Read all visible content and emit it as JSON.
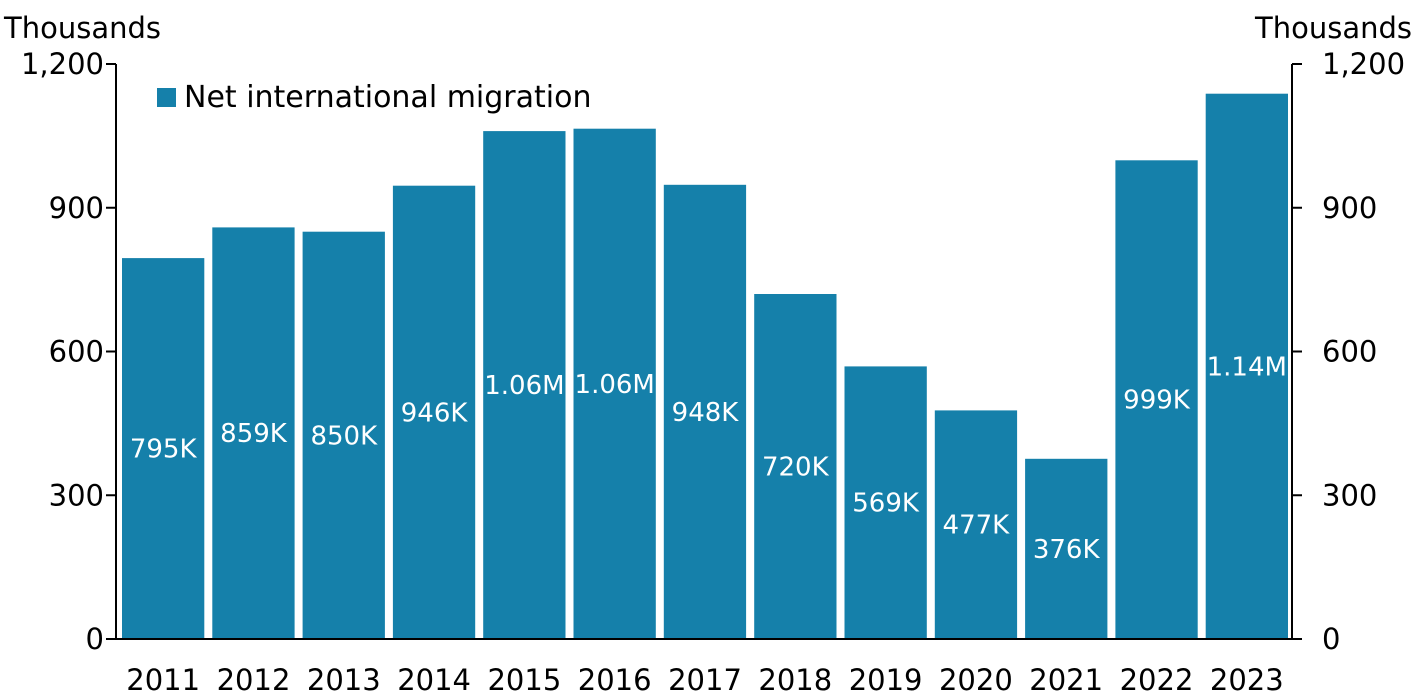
{
  "chart_data": {
    "type": "bar",
    "unit_left": "Thousands",
    "unit_right": "Thousands",
    "categories": [
      "2011",
      "2012",
      "2013",
      "2014",
      "2015",
      "2016",
      "2017",
      "2018",
      "2019",
      "2020",
      "2021",
      "2022",
      "2023"
    ],
    "series": [
      {
        "name": "Net international migration",
        "values": [
          795,
          859,
          850,
          946,
          1060,
          1065,
          948,
          720,
          569,
          477,
          376,
          999,
          1138
        ],
        "labels": [
          "795K",
          "859K",
          "850K",
          "946K",
          "1.06M",
          "1.06M",
          "948K",
          "720K",
          "569K",
          "477K",
          "376K",
          "999K",
          "1.14M"
        ]
      }
    ],
    "ylim": [
      0,
      1200
    ],
    "yticks": [
      0,
      300,
      600,
      900,
      1200
    ],
    "ytick_labels": [
      "0",
      "300",
      "600",
      "900",
      "1,200"
    ],
    "legend_position": "top-left",
    "grid": false,
    "colors": {
      "bar": "#1580aa"
    }
  }
}
